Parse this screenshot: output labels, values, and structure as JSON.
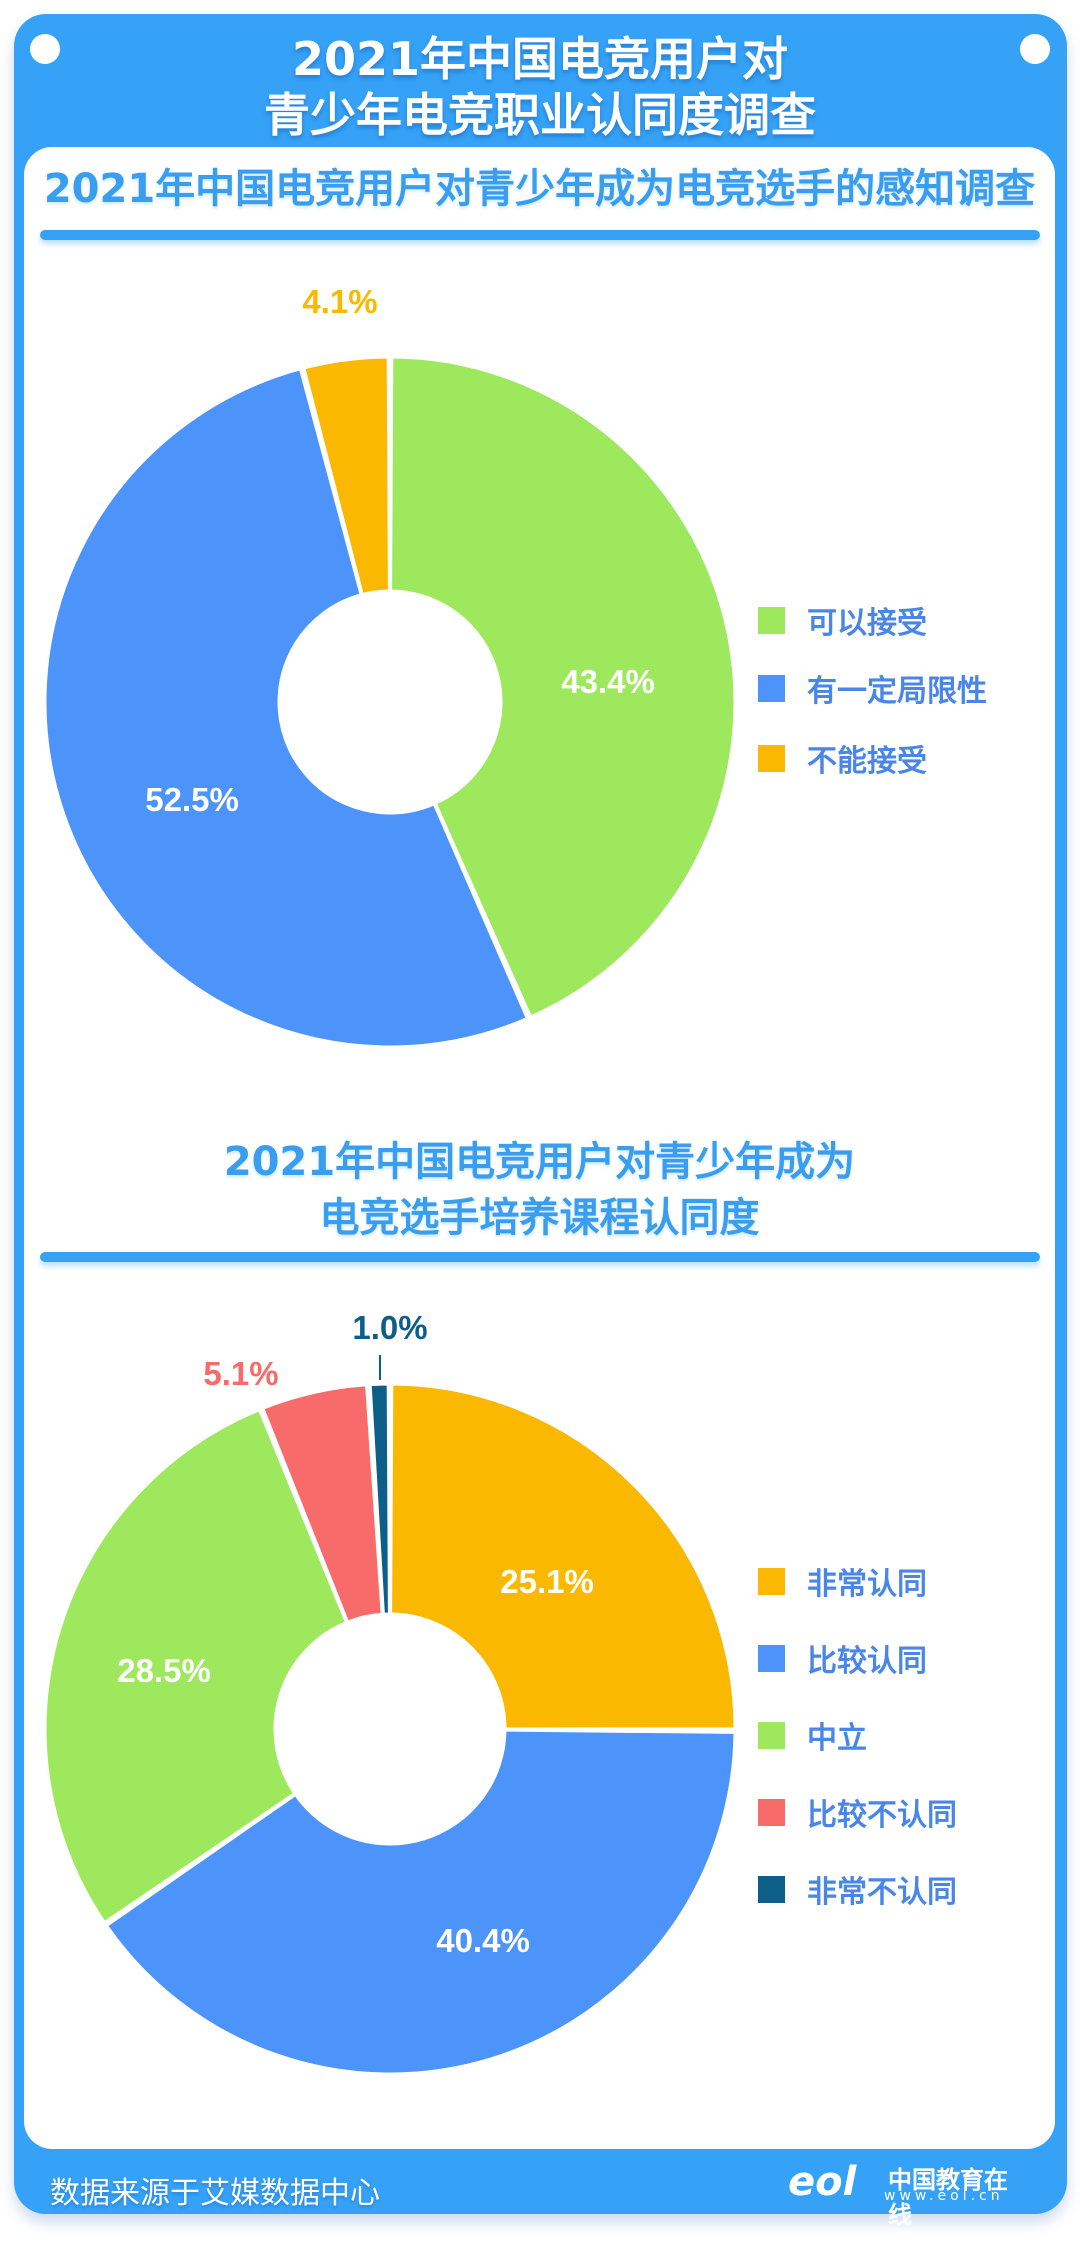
{
  "header": {
    "title_line1": "2021年中国电竞用户对",
    "title_line2": "青少年电竞职业认同度调查"
  },
  "colors": {
    "brand_blue": "#35a2f7",
    "legend_text": "#4a86e8"
  },
  "chart_data": [
    {
      "type": "pie",
      "variant": "donut",
      "title": "2021年中国电竞用户对青少年成为电竞选手的感知调查",
      "categories": [
        "可以接受",
        "有一定局限性",
        "不能接受"
      ],
      "values": [
        43.4,
        52.5,
        4.1
      ],
      "labels": [
        "43.4%",
        "52.5%",
        "4.1%"
      ],
      "colors": [
        "#9de85c",
        "#4d94fa",
        "#fbb800"
      ],
      "label_colors": [
        "#ffffff",
        "#ffffff",
        "#fbb800"
      ],
      "legend_position": "right",
      "start_angle_deg": 0,
      "direction": "clockwise"
    },
    {
      "type": "pie",
      "variant": "donut",
      "title": "2021年中国电竞用户对青少年成为电竞选手培养课程认同度",
      "title_line1": "2021年中国电竞用户对青少年成为",
      "title_line2": "电竞选手培养课程认同度",
      "categories": [
        "非常认同",
        "比较认同",
        "中立",
        "比较不认同",
        "非常不认同"
      ],
      "values": [
        25.1,
        40.4,
        28.5,
        5.1,
        1.0
      ],
      "labels": [
        "25.1%",
        "40.4%",
        "28.5%",
        "5.1%",
        "1.0%"
      ],
      "colors": [
        "#fbb800",
        "#4d94fa",
        "#9de85c",
        "#f76b6b",
        "#0d5f8a"
      ],
      "label_colors": [
        "#ffffff",
        "#ffffff",
        "#ffffff",
        "#f76b6b",
        "#0d5f8a"
      ],
      "legend_position": "right",
      "start_angle_deg": 0,
      "direction": "clockwise"
    }
  ],
  "section1": {
    "title": "2021年中国电竞用户对青少年成为电竞选手的感知调查",
    "legend": [
      "可以接受",
      "有一定局限性",
      "不能接受"
    ]
  },
  "section2": {
    "title_line1": "2021年中国电竞用户对青少年成为",
    "title_line2": "电竞选手培养课程认同度",
    "legend": [
      "非常认同",
      "比较认同",
      "中立",
      "比较不认同",
      "非常不认同"
    ]
  },
  "footer": {
    "source": "数据来源于艾媒数据中心",
    "logo_mark": "eol",
    "logo_name": "中国教育在线",
    "logo_url": "www.eol.cn"
  }
}
